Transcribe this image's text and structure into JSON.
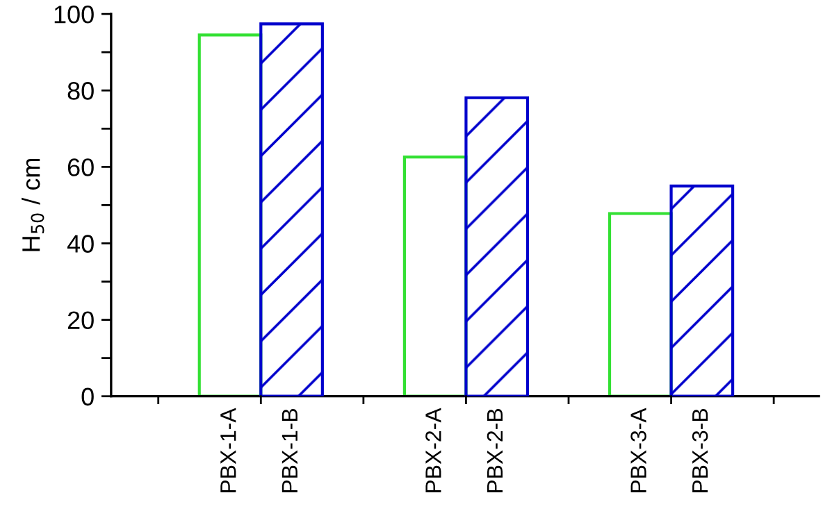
{
  "chart_data": {
    "type": "bar",
    "ylabel": "H$_{50}$ / cm",
    "categories": [
      "PBX-1-A",
      "PBX-1-B",
      "PBX-2-A",
      "PBX-2-B",
      "PBX-3-A",
      "PBX-3-B"
    ],
    "values": [
      94.5,
      97.4,
      62.6,
      78.1,
      47.8,
      55.0
    ],
    "colors": [
      "#33e033",
      "#0000cc",
      "#33e033",
      "#0000cc",
      "#33e033",
      "#0000cc"
    ],
    "ylim": [
      0,
      100
    ],
    "yticks": [
      0,
      {
        "value": 10,
        "label": null
      },
      20,
      {
        "value": 30,
        "label": null
      },
      40,
      {
        "value": 50,
        "label": null
      },
      60,
      {
        "value": 70,
        "label": null
      },
      80,
      {
        "value": 90,
        "label": null
      },
      100
    ],
    "grid": false,
    "legend": false
  }
}
